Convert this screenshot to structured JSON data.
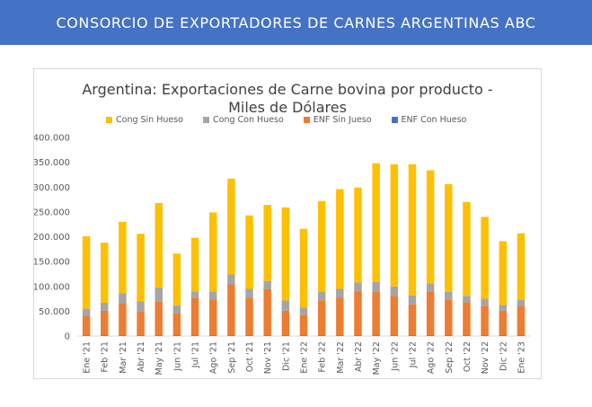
{
  "header": {
    "title": "CONSORCIO DE EXPORTADORES DE CARNES ARGENTINAS ABC"
  },
  "chart_data": {
    "type": "bar",
    "stacked": true,
    "title_lines": [
      "Argentina: Exportaciones de Carne bovina por producto -",
      "Miles de Dólares"
    ],
    "xlabel": "",
    "ylabel": "",
    "ylim": [
      0,
      400000
    ],
    "yticks": [
      "0",
      "50.000",
      "100.000",
      "150.000",
      "200.000",
      "250.000",
      "300.000",
      "350.000",
      "400.000"
    ],
    "ytick_values": [
      0,
      50000,
      100000,
      150000,
      200000,
      250000,
      300000,
      350000,
      400000
    ],
    "grid": false,
    "legend_position": "top",
    "categories": [
      "Ene '21",
      "Feb '21",
      "Mar '21",
      "Abr '21",
      "May '21",
      "Jun '21",
      "Jul '21",
      "Ago '21",
      "Sep '21",
      "Oct '21",
      "Nov '21",
      "Dic '21",
      "Ene '22",
      "Feb '22",
      "Mar '22",
      "Abr '22",
      "May '22",
      "Jun '22",
      "Jul '22",
      "Ago '22",
      "Sep '22",
      "Oct '22",
      "Nov '22",
      "Dic '22",
      "Ene '23"
    ],
    "series": [
      {
        "name": "ENF Con Hueso",
        "color": "#4472c4",
        "values": [
          1000,
          1000,
          1000,
          1000,
          1000,
          1000,
          1000,
          1000,
          1000,
          1000,
          1000,
          1000,
          1000,
          1000,
          1000,
          1000,
          1000,
          1000,
          1000,
          1000,
          1000,
          1000,
          1000,
          1000,
          1000
        ]
      },
      {
        "name": "ENF Sin Jueso",
        "color": "#ed7d31",
        "values": [
          40000,
          50000,
          65000,
          49000,
          68000,
          45000,
          75000,
          73000,
          103000,
          76000,
          93000,
          50000,
          42000,
          71000,
          76000,
          90000,
          88000,
          80000,
          63000,
          89000,
          72000,
          67000,
          60000,
          50000,
          60000
        ]
      },
      {
        "name": "Cong Con Hueso",
        "color": "#a5a5a5",
        "values": [
          14000,
          16000,
          20000,
          20000,
          29000,
          16000,
          14000,
          16000,
          20000,
          18000,
          17000,
          21000,
          14000,
          18000,
          18000,
          17000,
          20000,
          19000,
          18000,
          16000,
          16000,
          13000,
          14000,
          12000,
          12000
        ]
      },
      {
        "name": "Cong Sin Hueso",
        "color": "#ffc000",
        "values": [
          146000,
          121000,
          144000,
          136000,
          170000,
          104000,
          108000,
          159000,
          193000,
          148000,
          153000,
          187000,
          159000,
          182000,
          201000,
          191000,
          239000,
          246000,
          264000,
          228000,
          217000,
          189000,
          165000,
          128000,
          134000
        ]
      }
    ],
    "legend_order": [
      "Cong Sin Hueso",
      "Cong Con Hueso",
      "ENF Sin Jueso",
      "ENF Con Hueso"
    ]
  }
}
